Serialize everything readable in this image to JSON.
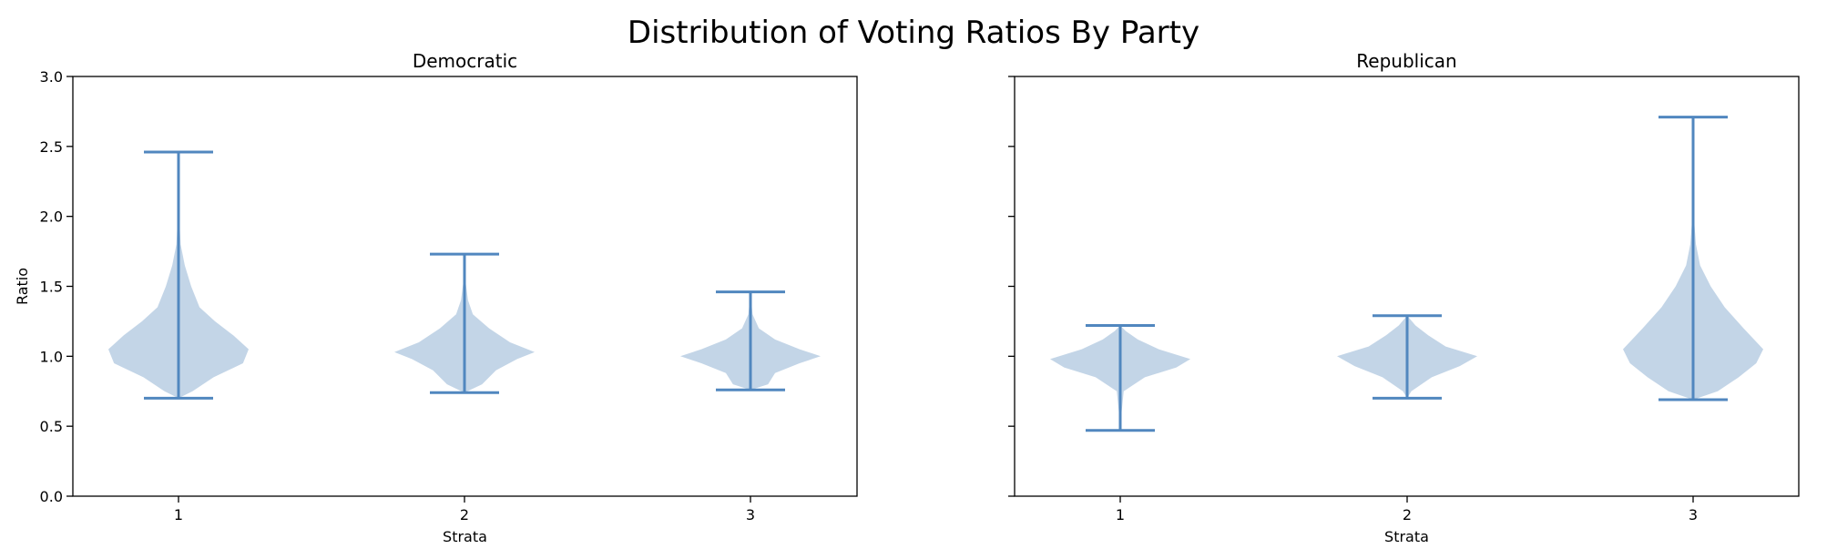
{
  "figure": {
    "title": "Distribution of Voting Ratios By Party",
    "colors": {
      "body": "#c3d5e7",
      "line": "#5187bf",
      "axis": "#000000"
    }
  },
  "chart_data": [
    {
      "type": "violin",
      "title": "Democratic",
      "xlabel": "Strata",
      "ylabel": "Ratio",
      "ylim": [
        0,
        3.0
      ],
      "yticks": [
        "0.0",
        "0.5",
        "1.0",
        "1.5",
        "2.0",
        "2.5",
        "3.0"
      ],
      "categories": [
        "1",
        "2",
        "3"
      ],
      "violins": [
        {
          "category": "1",
          "min": 0.7,
          "max": 2.46,
          "density": [
            [
              0.7,
              0.0
            ],
            [
              0.75,
              0.2
            ],
            [
              0.85,
              0.5
            ],
            [
              0.95,
              0.92
            ],
            [
              1.05,
              1.0
            ],
            [
              1.15,
              0.78
            ],
            [
              1.25,
              0.52
            ],
            [
              1.35,
              0.3
            ],
            [
              1.5,
              0.18
            ],
            [
              1.65,
              0.09
            ],
            [
              1.8,
              0.03
            ],
            [
              2.0,
              0.01
            ],
            [
              2.46,
              0.0
            ]
          ]
        },
        {
          "category": "2",
          "min": 0.74,
          "max": 1.73,
          "density": [
            [
              0.74,
              0.0
            ],
            [
              0.8,
              0.25
            ],
            [
              0.9,
              0.45
            ],
            [
              0.98,
              0.75
            ],
            [
              1.03,
              1.0
            ],
            [
              1.1,
              0.65
            ],
            [
              1.2,
              0.35
            ],
            [
              1.3,
              0.12
            ],
            [
              1.4,
              0.05
            ],
            [
              1.55,
              0.01
            ],
            [
              1.73,
              0.0
            ]
          ]
        },
        {
          "category": "3",
          "min": 0.76,
          "max": 1.46,
          "density": [
            [
              0.76,
              0.0
            ],
            [
              0.8,
              0.25
            ],
            [
              0.88,
              0.35
            ],
            [
              0.95,
              0.7
            ],
            [
              1.0,
              1.0
            ],
            [
              1.05,
              0.7
            ],
            [
              1.12,
              0.35
            ],
            [
              1.2,
              0.12
            ],
            [
              1.3,
              0.03
            ],
            [
              1.46,
              0.0
            ]
          ]
        }
      ]
    },
    {
      "type": "violin",
      "title": "Republican",
      "xlabel": "Strata",
      "ylabel": "",
      "ylim": [
        0,
        3.0
      ],
      "yticks": [],
      "categories": [
        "1",
        "2",
        "3"
      ],
      "violins": [
        {
          "category": "1",
          "min": 0.47,
          "max": 1.22,
          "density": [
            [
              0.47,
              0.0
            ],
            [
              0.6,
              0.02
            ],
            [
              0.75,
              0.05
            ],
            [
              0.85,
              0.35
            ],
            [
              0.92,
              0.8
            ],
            [
              0.98,
              1.0
            ],
            [
              1.05,
              0.55
            ],
            [
              1.12,
              0.25
            ],
            [
              1.18,
              0.08
            ],
            [
              1.22,
              0.0
            ]
          ]
        },
        {
          "category": "2",
          "min": 0.7,
          "max": 1.29,
          "density": [
            [
              0.7,
              0.0
            ],
            [
              0.75,
              0.06
            ],
            [
              0.85,
              0.35
            ],
            [
              0.93,
              0.75
            ],
            [
              1.0,
              1.0
            ],
            [
              1.07,
              0.55
            ],
            [
              1.15,
              0.3
            ],
            [
              1.22,
              0.12
            ],
            [
              1.29,
              0.0
            ]
          ]
        },
        {
          "category": "3",
          "min": 0.69,
          "max": 2.71,
          "density": [
            [
              0.69,
              0.0
            ],
            [
              0.75,
              0.35
            ],
            [
              0.85,
              0.65
            ],
            [
              0.95,
              0.9
            ],
            [
              1.05,
              1.0
            ],
            [
              1.2,
              0.72
            ],
            [
              1.35,
              0.45
            ],
            [
              1.5,
              0.25
            ],
            [
              1.65,
              0.1
            ],
            [
              1.8,
              0.04
            ],
            [
              2.0,
              0.01
            ],
            [
              2.71,
              0.0
            ]
          ]
        }
      ]
    }
  ]
}
